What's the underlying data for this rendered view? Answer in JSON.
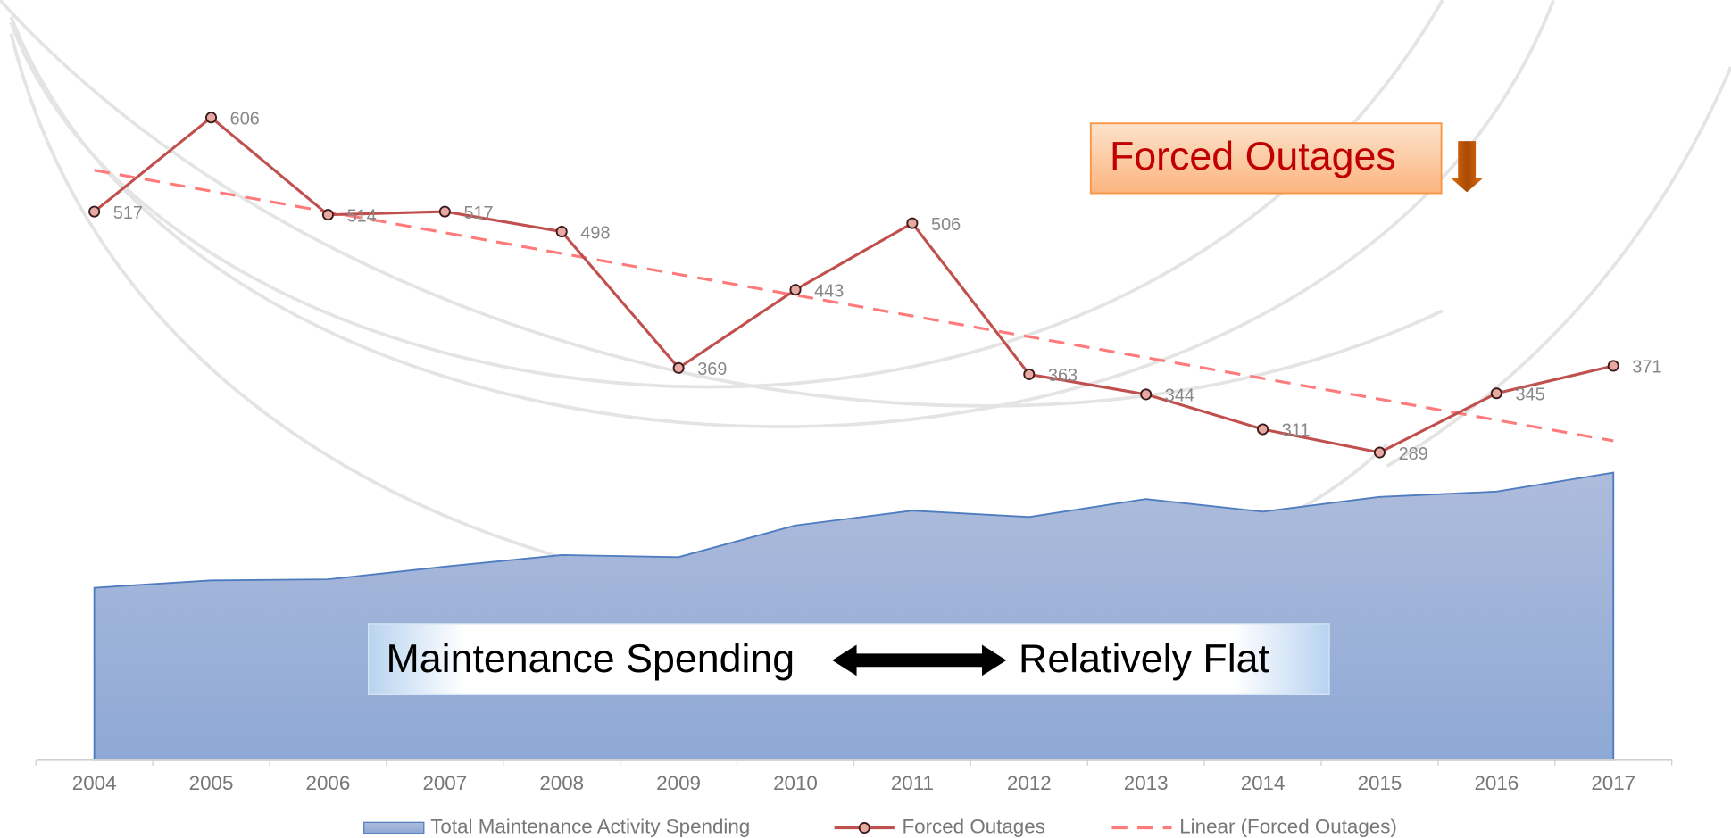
{
  "chart_data": {
    "type": "line",
    "categories": [
      "2004",
      "2005",
      "2006",
      "2007",
      "2008",
      "2009",
      "2010",
      "2011",
      "2012",
      "2013",
      "2014",
      "2015",
      "2016",
      "2017"
    ],
    "ylim": [
      0,
      717
    ],
    "series": [
      {
        "name": "Total Maintenance Activity Spending",
        "type": "area",
        "color": "#8eaad6",
        "values": [
          161,
          168,
          169,
          181,
          192,
          190,
          220,
          234,
          228,
          245,
          233,
          247,
          252,
          270
        ]
      },
      {
        "name": "Forced Outages",
        "type": "line",
        "color": "#c0504d",
        "values": [
          517,
          606,
          514,
          517,
          498,
          369,
          443,
          506,
          363,
          344,
          311,
          289,
          345,
          371
        ]
      }
    ],
    "trendline": {
      "name": "Linear (Forced Outages)",
      "color": "#ff7b7b"
    },
    "annotations": [
      "Forced Outages",
      "Maintenance Spending",
      "Relatively Flat"
    ]
  }
}
